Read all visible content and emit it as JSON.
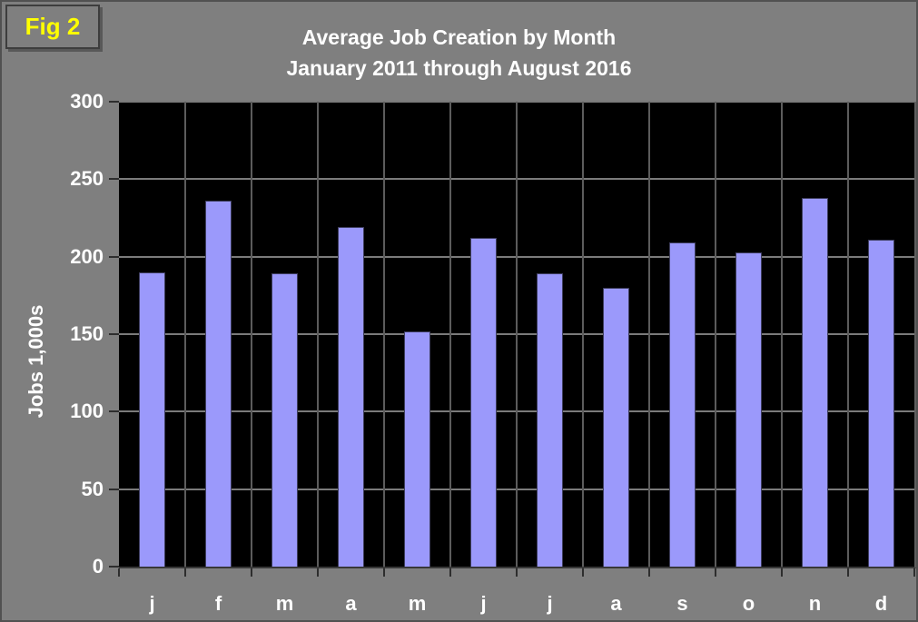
{
  "figure_label": "Fig 2",
  "title": {
    "line1": "Average Job Creation by Month",
    "line2": "January 2011 through August 2016"
  },
  "chart_data": {
    "type": "bar",
    "title": "Average Job Creation by Month",
    "subtitle": "January 2011 through August 2016",
    "categories": [
      "j",
      "f",
      "m",
      "a",
      "m",
      "j",
      "j",
      "a",
      "s",
      "o",
      "n",
      "d"
    ],
    "values": [
      190,
      236,
      189,
      219,
      152,
      212,
      189,
      180,
      209,
      203,
      238,
      211
    ],
    "xlabel": "",
    "ylabel": "Jobs 1,000s",
    "ylim": [
      0,
      300
    ],
    "yticks": [
      0,
      50,
      100,
      150,
      200,
      250,
      300
    ],
    "grid": true,
    "legend": false,
    "colors": {
      "page_bg": "#7f7f7f",
      "plot_bg": "#000000",
      "bar_fill": "#9b99fb",
      "bar_border": "#3e3e5e",
      "grid_horizontal": "#7b7b7b",
      "grid_vertical": "#5c5c5c",
      "text": "#ffffff",
      "figure_label_text": "#ffff00"
    }
  }
}
